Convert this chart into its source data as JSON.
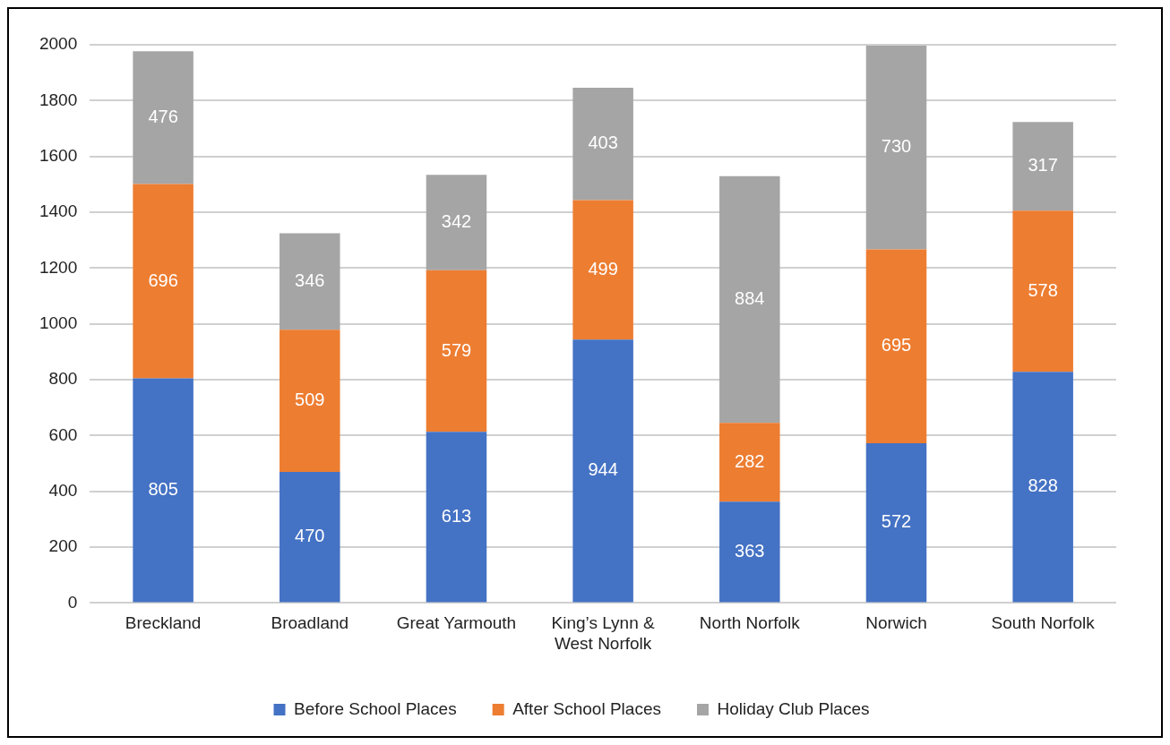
{
  "chart_data": {
    "type": "bar",
    "stacked": true,
    "categories": [
      "Breckland",
      "Broadland",
      "Great Yarmouth",
      "King’s Lynn & West Norfolk",
      "North Norfolk",
      "Norwich",
      "South Norfolk"
    ],
    "series": [
      {
        "name": "Before School Places",
        "color": "#4472c4",
        "values": [
          805,
          470,
          613,
          944,
          363,
          572,
          828
        ]
      },
      {
        "name": "After School Places",
        "color": "#ed7d31",
        "values": [
          696,
          509,
          579,
          499,
          282,
          695,
          578
        ]
      },
      {
        "name": "Holiday Club Places",
        "color": "#a5a5a5",
        "values": [
          476,
          346,
          342,
          403,
          884,
          730,
          317
        ]
      }
    ],
    "ylim": [
      0,
      2000
    ],
    "yticks": [
      0,
      200,
      400,
      600,
      800,
      1000,
      1200,
      1400,
      1600,
      1800,
      2000
    ],
    "grid": "y",
    "legend": "bottom",
    "data_labels": true
  }
}
